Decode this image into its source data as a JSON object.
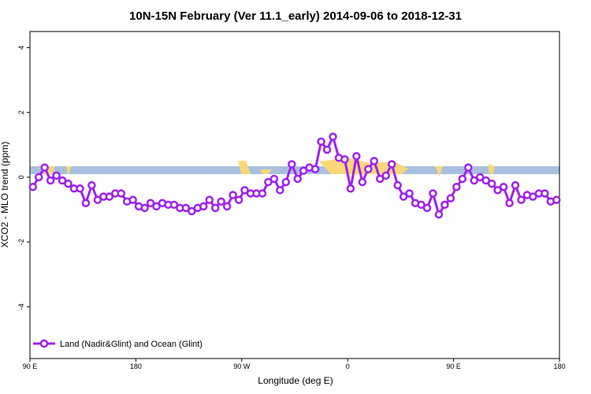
{
  "chart_data": {
    "type": "line",
    "title": "10N-15N February (Ver 11.1_early)   2014-09-06 to 2018-12-31",
    "x_label": "Longitude (deg E)",
    "y_label": "XCO2 - MLO trend (ppm)",
    "xlim": [
      90,
      540
    ],
    "ylim": [
      -5.6,
      4.5
    ],
    "xticks": [
      {
        "value": 90,
        "label": "90 E"
      },
      {
        "value": 180,
        "label": "180"
      },
      {
        "value": 270,
        "label": "90 W"
      },
      {
        "value": 360,
        "label": "0"
      },
      {
        "value": 450,
        "label": "90 E"
      },
      {
        "value": 540,
        "label": "180"
      }
    ],
    "yticks": [
      -4,
      -2,
      0,
      2,
      4
    ],
    "legend_position": "bottom-left",
    "x": [
      92.5,
      97.5,
      102.5,
      107.5,
      112.5,
      117.5,
      122.5,
      127.5,
      132.5,
      137.5,
      142.5,
      147.5,
      152.5,
      157.5,
      162.5,
      167.5,
      172.5,
      177.5,
      182.5,
      187.5,
      192.5,
      197.5,
      202.5,
      207.5,
      212.5,
      217.5,
      222.5,
      227.5,
      232.5,
      237.5,
      242.5,
      247.5,
      252.5,
      257.5,
      262.5,
      267.5,
      272.5,
      277.5,
      282.5,
      287.5,
      292.5,
      297.5,
      302.5,
      307.5,
      312.5,
      317.5,
      322.5,
      327.5,
      332.5,
      337.5,
      342.5,
      347.5,
      352.5,
      357.5,
      362.5,
      367.5,
      372.5,
      377.5,
      382.5,
      387.5,
      392.5,
      397.5,
      402.5,
      407.5,
      412.5,
      417.5,
      422.5,
      427.5,
      432.5,
      437.5,
      442.5,
      447.5,
      452.5,
      457.5,
      462.5,
      467.5,
      472.5,
      477.5,
      482.5,
      487.5,
      492.5,
      497.5,
      502.5,
      507.5,
      512.5,
      517.5,
      522.5,
      527.5,
      532.5,
      537.5
    ],
    "series": [
      {
        "name": "Land (Nadir&Glint) and Ocean (Glint)",
        "color": "#a020f0",
        "values": [
          -0.3,
          0.0,
          0.3,
          -0.1,
          0.05,
          -0.1,
          -0.2,
          -0.35,
          -0.35,
          -0.8,
          -0.25,
          -0.7,
          -0.6,
          -0.6,
          -0.5,
          -0.5,
          -0.75,
          -0.7,
          -0.9,
          -0.95,
          -0.8,
          -0.9,
          -0.8,
          -0.85,
          -0.85,
          -0.95,
          -0.95,
          -1.05,
          -0.95,
          -0.9,
          -0.7,
          -0.95,
          -0.75,
          -0.9,
          -0.55,
          -0.7,
          -0.4,
          -0.5,
          -0.5,
          -0.5,
          -0.15,
          -0.05,
          -0.4,
          -0.15,
          0.4,
          -0.05,
          0.2,
          0.3,
          0.25,
          1.1,
          0.85,
          1.25,
          0.6,
          0.55,
          -0.35,
          0.65,
          -0.15,
          0.25,
          0.5,
          -0.05,
          0.05,
          0.4,
          -0.25,
          -0.6,
          -0.5,
          -0.8,
          -0.85,
          -0.95,
          -0.5,
          -1.15,
          -0.85,
          -0.65,
          -0.3,
          -0.05,
          0.3,
          -0.1,
          0.0,
          -0.1,
          -0.2,
          -0.4,
          -0.3,
          -0.8,
          -0.25,
          -0.7,
          -0.55,
          -0.6,
          -0.5,
          -0.5,
          -0.75,
          -0.7
        ]
      }
    ]
  }
}
